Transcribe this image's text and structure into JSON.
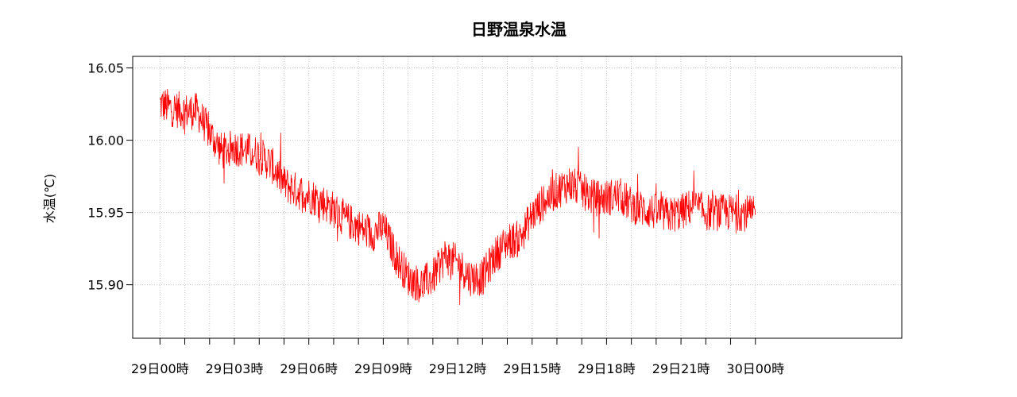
{
  "chart_data": {
    "type": "line",
    "title": "日野温泉水温",
    "xlabel": "",
    "ylabel": "水温(℃)",
    "xlim_hours": [
      -1.1,
      29.9
    ],
    "ylim": [
      15.863,
      16.058
    ],
    "x_ticks": [
      {
        "hour": 0,
        "label": "29日00時"
      },
      {
        "hour": 3,
        "label": "29日03時"
      },
      {
        "hour": 6,
        "label": "29日06時"
      },
      {
        "hour": 9,
        "label": "29日09時"
      },
      {
        "hour": 12,
        "label": "29日12時"
      },
      {
        "hour": 15,
        "label": "29日15時"
      },
      {
        "hour": 18,
        "label": "29日18時"
      },
      {
        "hour": 21,
        "label": "29日21時"
      },
      {
        "hour": 24,
        "label": "30日00時"
      }
    ],
    "y_ticks": [
      15.9,
      15.95,
      16.0,
      16.05
    ],
    "y_tick_labels": [
      "15.90",
      "15.95",
      "16.00",
      "16.05"
    ],
    "grid": true,
    "grid_minor_x_every_hours": 1,
    "line_color": "#ff0000",
    "series": [
      {
        "x_hours": [
          0,
          0.5,
          1,
          1.5,
          2,
          2.5,
          3,
          3.5,
          4,
          4.5,
          5,
          5.5,
          6,
          6.5,
          7,
          7.5,
          8,
          8.5,
          9,
          9.5,
          10,
          10.5,
          11,
          11.5,
          12,
          12.5,
          13,
          13.5,
          14,
          14.5,
          15,
          15.5,
          16,
          16.5,
          17,
          17.5,
          18,
          18.5,
          19,
          19.5,
          20,
          20.5,
          21,
          21.5,
          22,
          22.5,
          23,
          23.5,
          24
        ],
        "values": [
          16.025,
          16.022,
          16.02,
          16.02,
          16.005,
          15.992,
          15.995,
          15.993,
          15.99,
          15.983,
          15.97,
          15.965,
          15.962,
          15.958,
          15.952,
          15.945,
          15.94,
          15.935,
          15.94,
          15.92,
          15.905,
          15.9,
          15.905,
          15.92,
          15.915,
          15.905,
          15.905,
          15.92,
          15.93,
          15.932,
          15.948,
          15.958,
          15.965,
          15.97,
          15.965,
          15.96,
          15.96,
          15.962,
          15.955,
          15.952,
          15.95,
          15.948,
          15.95,
          15.955,
          15.95,
          15.95,
          15.95,
          15.95,
          15.948
        ]
      }
    ]
  }
}
